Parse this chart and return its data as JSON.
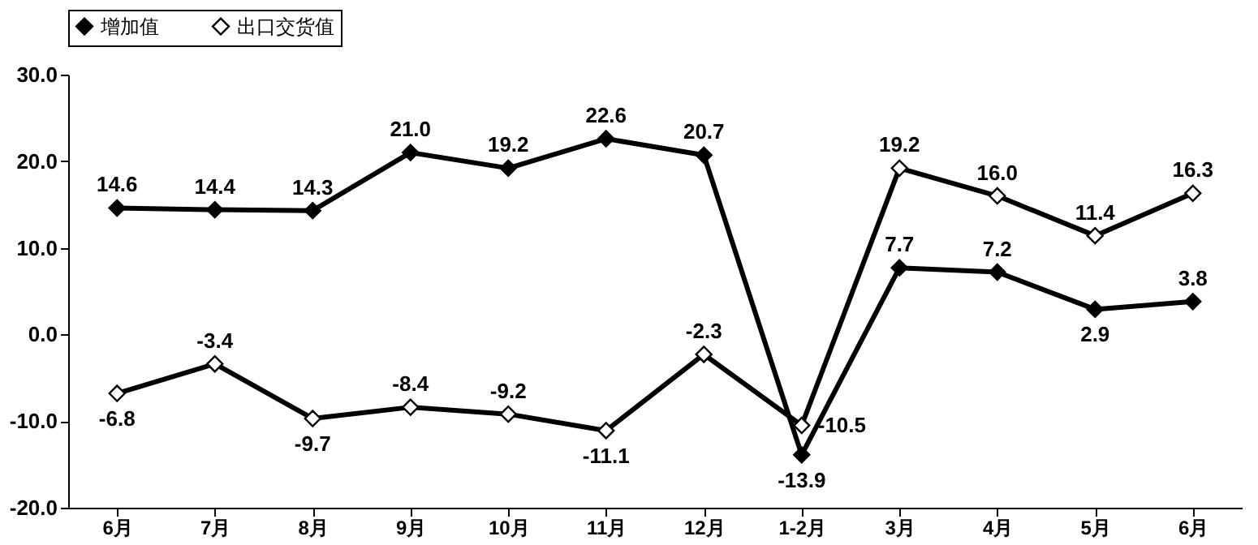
{
  "chart_data": {
    "type": "line",
    "categories": [
      "6月",
      "7月",
      "8月",
      "9月",
      "10月",
      "11月",
      "12月",
      "1-2月",
      "3月",
      "4月",
      "5月",
      "6月"
    ],
    "series": [
      {
        "name": "增加值",
        "color": "#000000",
        "values": [
          14.6,
          14.4,
          14.3,
          21.0,
          19.2,
          22.6,
          20.7,
          -13.9,
          7.7,
          7.2,
          2.9,
          3.8
        ],
        "value_labels": [
          "14.6",
          "14.4",
          "14.3",
          "21.0",
          "19.2",
          "22.6",
          "20.7",
          "-13.9",
          "7.7",
          "7.2",
          "2.9",
          "3.8"
        ]
      },
      {
        "name": "出口交货值",
        "color": "#000000",
        "values": [
          -6.8,
          -3.4,
          -9.7,
          -8.4,
          -9.2,
          -11.1,
          -2.3,
          -10.5,
          19.2,
          16.0,
          11.4,
          16.3
        ],
        "value_labels": [
          "-6.8",
          "-3.4",
          "-9.7",
          "-8.4",
          "-9.2",
          "-11.1",
          "-2.3",
          "-10.5",
          "19.2",
          "16.0",
          "11.4",
          "16.3"
        ]
      }
    ],
    "ylim": [
      -20,
      30
    ],
    "yticks": [
      {
        "value": -20,
        "label": "-20.0"
      },
      {
        "value": -10,
        "label": "-10.0"
      },
      {
        "value": 0,
        "label": "0.0"
      },
      {
        "value": 10,
        "label": "10.0"
      },
      {
        "value": 20,
        "label": "20.0"
      },
      {
        "value": 30,
        "label": "30.0"
      }
    ],
    "marker": "diamond",
    "legend": "top",
    "grid": false
  }
}
